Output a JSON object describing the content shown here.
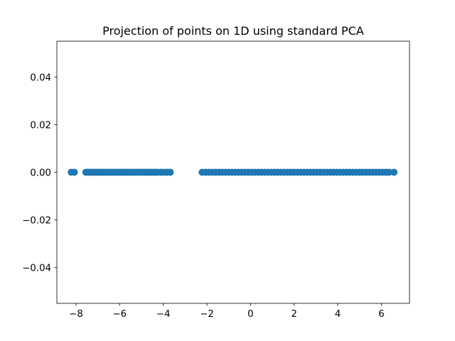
{
  "chart_data": {
    "type": "scatter",
    "title": "Projection of points on 1D using standard PCA",
    "xlabel": "",
    "ylabel": "",
    "xlim": [
      -8.88,
      7.29
    ],
    "ylim": [
      -0.055,
      0.055
    ],
    "x_ticks": [
      -8,
      -6,
      -4,
      -2,
      0,
      2,
      4,
      6
    ],
    "x_tick_labels": [
      "−8",
      "−6",
      "−4",
      "−2",
      "0",
      "2",
      "4",
      "6"
    ],
    "y_ticks": [
      0.04,
      0.02,
      0.0,
      -0.02,
      -0.04
    ],
    "y_tick_labels": [
      "0.04",
      "0.02",
      "0.00",
      "−0.02",
      "−0.04"
    ],
    "grid": false,
    "series": [
      {
        "color": "#1f77b4",
        "x": [
          -8.22,
          -8.08,
          -7.55,
          -7.45,
          -7.35,
          -7.25,
          -7.15,
          -7.05,
          -6.95,
          -6.85,
          -6.75,
          -6.65,
          -6.55,
          -6.45,
          -6.35,
          -6.25,
          -6.15,
          -6.05,
          -5.95,
          -5.85,
          -5.75,
          -5.65,
          -5.55,
          -5.45,
          -5.35,
          -5.25,
          -5.15,
          -5.05,
          -4.95,
          -4.85,
          -4.75,
          -4.65,
          -4.55,
          -4.45,
          -4.35,
          -4.25,
          -4.1,
          -3.95,
          -3.82,
          -3.68,
          -2.22,
          -2.05,
          -1.9,
          -1.75,
          -1.6,
          -1.45,
          -1.3,
          -1.15,
          -1.0,
          -0.85,
          -0.7,
          -0.55,
          -0.4,
          -0.25,
          -0.1,
          0.05,
          0.2,
          0.35,
          0.5,
          0.65,
          0.8,
          0.95,
          1.1,
          1.25,
          1.4,
          1.55,
          1.7,
          1.85,
          2.0,
          2.15,
          2.3,
          2.45,
          2.6,
          2.75,
          2.9,
          3.05,
          3.2,
          3.35,
          3.5,
          3.65,
          3.8,
          3.95,
          4.1,
          4.25,
          4.4,
          4.55,
          4.7,
          4.85,
          5.0,
          5.15,
          5.3,
          5.45,
          5.6,
          5.75,
          5.9,
          6.05,
          6.2,
          6.35,
          6.58
        ],
        "y": [
          0,
          0,
          0,
          0,
          0,
          0,
          0,
          0,
          0,
          0,
          0,
          0,
          0,
          0,
          0,
          0,
          0,
          0,
          0,
          0,
          0,
          0,
          0,
          0,
          0,
          0,
          0,
          0,
          0,
          0,
          0,
          0,
          0,
          0,
          0,
          0,
          0,
          0,
          0,
          0,
          0,
          0,
          0,
          0,
          0,
          0,
          0,
          0,
          0,
          0,
          0,
          0,
          0,
          0,
          0,
          0,
          0,
          0,
          0,
          0,
          0,
          0,
          0,
          0,
          0,
          0,
          0,
          0,
          0,
          0,
          0,
          0,
          0,
          0,
          0,
          0,
          0,
          0,
          0,
          0,
          0,
          0,
          0,
          0,
          0,
          0,
          0,
          0,
          0,
          0,
          0,
          0,
          0,
          0,
          0,
          0,
          0,
          0,
          0
        ]
      }
    ]
  }
}
